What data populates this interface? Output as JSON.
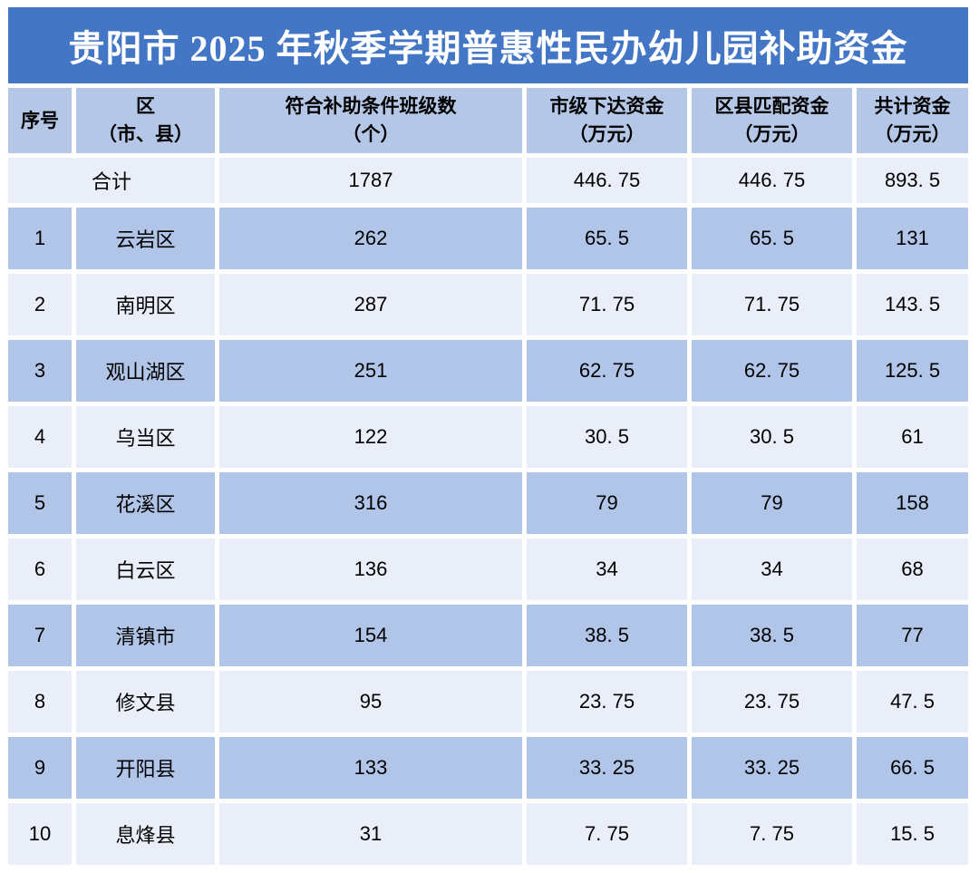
{
  "title": "贵阳市 2025 年秋季学期普惠性民办幼儿园补助资金",
  "colors": {
    "title_bar": "#4377C6",
    "title_text": "#FFFFFF",
    "header_row": "#B4C7E7",
    "row_band_dark": "#B0C5E8",
    "row_band_light": "#E9EEF8",
    "body_text": "#000000",
    "background": "#FFFFFF"
  },
  "table": {
    "columns": [
      {
        "line1": "序号",
        "line2": ""
      },
      {
        "line1": "区",
        "line2": "（市、县）"
      },
      {
        "line1": "符合补助条件班级数",
        "line2": "（个）"
      },
      {
        "line1": "市级下达资金",
        "line2": "（万元）"
      },
      {
        "line1": "区县匹配资金",
        "line2": "（万元）"
      },
      {
        "line1": "共计资金",
        "line2": "（万元）"
      }
    ],
    "total_row": {
      "label": "合计",
      "classes": "1787",
      "municipal": "446. 75",
      "county_match": "446. 75",
      "total": "893. 5"
    },
    "rows": [
      {
        "no": "1",
        "region": "云岩区",
        "classes": "262",
        "municipal": "65. 5",
        "county_match": "65. 5",
        "total": "131"
      },
      {
        "no": "2",
        "region": "南明区",
        "classes": "287",
        "municipal": "71. 75",
        "county_match": "71. 75",
        "total": "143. 5"
      },
      {
        "no": "3",
        "region": "观山湖区",
        "classes": "251",
        "municipal": "62. 75",
        "county_match": "62. 75",
        "total": "125. 5"
      },
      {
        "no": "4",
        "region": "乌当区",
        "classes": "122",
        "municipal": "30. 5",
        "county_match": "30. 5",
        "total": "61"
      },
      {
        "no": "5",
        "region": "花溪区",
        "classes": "316",
        "municipal": "79",
        "county_match": "79",
        "total": "158"
      },
      {
        "no": "6",
        "region": "白云区",
        "classes": "136",
        "municipal": "34",
        "county_match": "34",
        "total": "68"
      },
      {
        "no": "7",
        "region": "清镇市",
        "classes": "154",
        "municipal": "38. 5",
        "county_match": "38. 5",
        "total": "77"
      },
      {
        "no": "8",
        "region": "修文县",
        "classes": "95",
        "municipal": "23. 75",
        "county_match": "23. 75",
        "total": "47. 5"
      },
      {
        "no": "9",
        "region": "开阳县",
        "classes": "133",
        "municipal": "33. 25",
        "county_match": "33. 25",
        "total": "66. 5"
      },
      {
        "no": "10",
        "region": "息烽县",
        "classes": "31",
        "municipal": "7. 75",
        "county_match": "7. 75",
        "total": "15. 5"
      }
    ]
  }
}
